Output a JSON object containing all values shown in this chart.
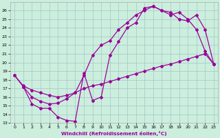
{
  "xlabel": "Windchill (Refroidissement éolien,°C)",
  "line_color": "#990099",
  "bg_color": "#cceedd",
  "grid_color": "#aacccc",
  "xlim": [
    -0.5,
    23.5
  ],
  "ylim": [
    13,
    27
  ],
  "xticks": [
    0,
    1,
    2,
    3,
    4,
    5,
    6,
    7,
    8,
    9,
    10,
    11,
    12,
    13,
    14,
    15,
    16,
    17,
    18,
    19,
    20,
    21,
    22,
    23
  ],
  "yticks": [
    13,
    14,
    15,
    16,
    17,
    18,
    19,
    20,
    21,
    22,
    23,
    24,
    25,
    26
  ],
  "line1_x": [
    0,
    1,
    2,
    3,
    4,
    5,
    6,
    7,
    8,
    9,
    10,
    11,
    12,
    13,
    14,
    15,
    16,
    17,
    18,
    19,
    20,
    21,
    22,
    23
  ],
  "line1_y": [
    18.5,
    17.2,
    15.2,
    14.7,
    14.7,
    13.7,
    13.3,
    13.2,
    18.8,
    15.6,
    16.0,
    20.8,
    22.4,
    24.0,
    24.6,
    26.3,
    26.5,
    26.0,
    25.5,
    25.8,
    25.0,
    23.8,
    21.3,
    19.8
  ],
  "line2_x": [
    0,
    1,
    2,
    3,
    4,
    5,
    6,
    7,
    8,
    9,
    10,
    11,
    12,
    13,
    14,
    15,
    16,
    17,
    18,
    19,
    20,
    21,
    22,
    23
  ],
  "line2_y": [
    18.5,
    17.3,
    16.8,
    16.5,
    16.2,
    16.0,
    16.2,
    16.5,
    17.0,
    17.3,
    17.5,
    17.8,
    18.1,
    18.4,
    18.7,
    19.0,
    19.3,
    19.6,
    19.8,
    20.1,
    20.4,
    20.7,
    21.0,
    19.8
  ],
  "line3_x": [
    1,
    2,
    3,
    4,
    5,
    6,
    7,
    8,
    9,
    10,
    11,
    12,
    13,
    14,
    15,
    16,
    17,
    18,
    19,
    20,
    21,
    22,
    23
  ],
  "line3_y": [
    17.2,
    16.0,
    15.5,
    15.2,
    15.3,
    15.8,
    16.5,
    18.5,
    20.8,
    22.0,
    22.5,
    23.8,
    24.6,
    25.5,
    26.0,
    26.5,
    26.0,
    25.8,
    25.0,
    24.8,
    25.5,
    23.8,
    19.8
  ]
}
